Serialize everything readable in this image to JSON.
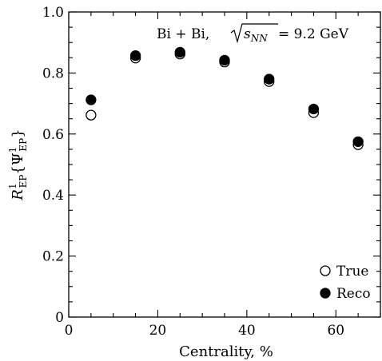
{
  "chart_data": {
    "type": "scatter",
    "xlabel": "Centrality, %",
    "ylabel": {
      "base": "R",
      "sup": "1",
      "sub": "EP",
      "arg_open": "{Ψ",
      "arg_sup": "1",
      "arg_sub": "EP",
      "arg_close": "}"
    },
    "xlim": [
      0,
      70
    ],
    "ylim": [
      0.0,
      1.0
    ],
    "xticks": [
      0,
      20,
      40,
      60
    ],
    "xtick_labels": [
      "0",
      "20",
      "40",
      "60"
    ],
    "yticks": [
      0.0,
      0.2,
      0.4,
      0.6,
      0.8,
      1.0
    ],
    "ytick_labels": [
      "0",
      "0.2",
      "0.4",
      "0.6",
      "0.8",
      "1.0"
    ],
    "annotation": {
      "prefix": "Bi + Bi, ",
      "sqrt_inner": "s",
      "sqrt_sub": "NN",
      "suffix": " = 9.2 GeV"
    },
    "legend_position": "bottom-right",
    "grid": false,
    "series": [
      {
        "name": "True",
        "marker": "open-circle",
        "x": [
          5,
          15,
          25,
          35,
          45,
          55,
          65
        ],
        "y": [
          0.662,
          0.849,
          0.862,
          0.836,
          0.772,
          0.67,
          0.565
        ]
      },
      {
        "name": "Reco",
        "marker": "filled-circle",
        "x": [
          5,
          15,
          25,
          35,
          45,
          55,
          65
        ],
        "y": [
          0.712,
          0.857,
          0.868,
          0.842,
          0.78,
          0.682,
          0.575
        ]
      }
    ]
  }
}
